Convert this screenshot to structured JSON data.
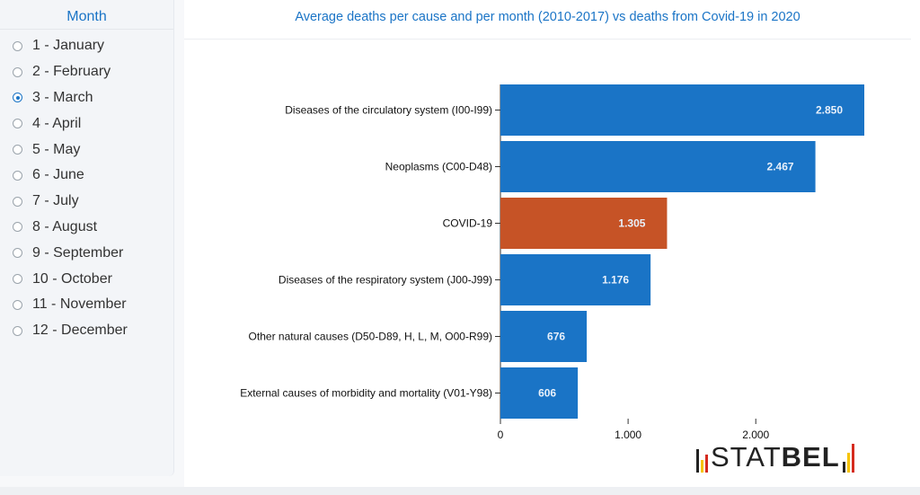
{
  "sidebar": {
    "title": "Month",
    "selected_index": 2,
    "items": [
      "1 - January",
      "2 - February",
      "3 - March",
      "4 - April",
      "5 - May",
      "6 - June",
      "7 - July",
      "8 - August",
      "9 - September",
      "10 - October",
      "11 - November",
      "12 - December"
    ]
  },
  "chart_data": {
    "type": "bar",
    "orientation": "horizontal",
    "title": "Average deaths per cause and per month (2010-2017) vs deaths from Covid-19 in 2020",
    "categories": [
      "Diseases of the circulatory system (I00-I99)",
      "Neoplasms (C00-D48)",
      "COVID-19",
      "Diseases of the respiratory system (J00-J99)",
      "Other natural causes (D50-D89, H, L, M, O00-R99)",
      "External causes of morbidity and mortality (V01-Y98)"
    ],
    "values": [
      2850,
      2467,
      1305,
      1176,
      676,
      606
    ],
    "value_labels": [
      "2.850",
      "2.467",
      "1.305",
      "1.176",
      "676",
      "606"
    ],
    "colors": [
      "#1a74c6",
      "#1a74c6",
      "#c65326",
      "#1a74c6",
      "#1a74c6",
      "#1a74c6"
    ],
    "xlim": [
      0,
      2850
    ],
    "x_ticks": [
      0,
      1000,
      2000
    ],
    "x_tick_labels": [
      "0",
      "1.000",
      "2.000"
    ],
    "grid": false
  },
  "logo": {
    "text_light": "STAT",
    "text_bold": "BEL",
    "colors": [
      "#222222",
      "#f6c400",
      "#d52b1e"
    ]
  }
}
